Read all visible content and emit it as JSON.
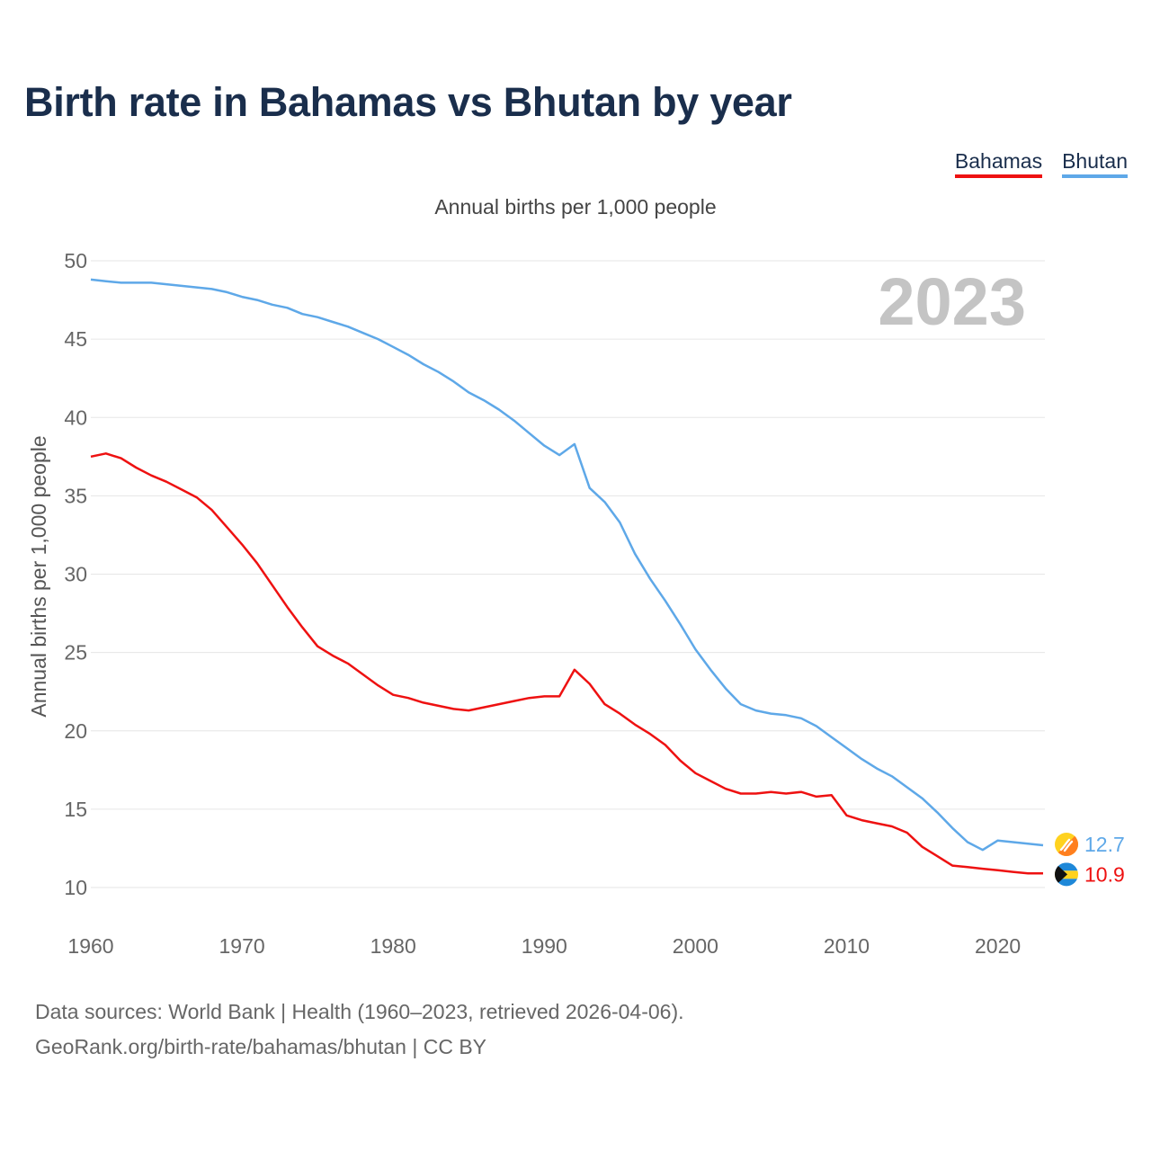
{
  "title": "Birth rate in Bahamas vs Bhutan by year",
  "legend": [
    {
      "name": "Bahamas",
      "color": "#ee1111"
    },
    {
      "name": "Bhutan",
      "color": "#5ea8e8"
    }
  ],
  "footer": {
    "line1": "Data sources: World Bank | Health (1960–2023, retrieved 2026-04-06).",
    "line2": "GeoRank.org/birth-rate/bahamas/bhutan | CC BY"
  },
  "chart_data": {
    "type": "line",
    "title": "Birth rate in Bahamas vs Bhutan by year",
    "subtitle": "Annual births per 1,000 people",
    "xlabel": "",
    "ylabel": "Annual births per 1,000 people",
    "year_label": "2023",
    "xlim": [
      1960,
      2023
    ],
    "ylim": [
      10,
      50
    ],
    "x_ticks": [
      1960,
      1970,
      1980,
      1990,
      2000,
      2010,
      2020
    ],
    "y_ticks": [
      10,
      15,
      20,
      25,
      30,
      35,
      40,
      45,
      50
    ],
    "grid": true,
    "x": [
      1960,
      1961,
      1962,
      1963,
      1964,
      1965,
      1966,
      1967,
      1968,
      1969,
      1970,
      1971,
      1972,
      1973,
      1974,
      1975,
      1976,
      1977,
      1978,
      1979,
      1980,
      1981,
      1982,
      1983,
      1984,
      1985,
      1986,
      1987,
      1988,
      1989,
      1990,
      1991,
      1992,
      1993,
      1994,
      1995,
      1996,
      1997,
      1998,
      1999,
      2000,
      2001,
      2002,
      2003,
      2004,
      2005,
      2006,
      2007,
      2008,
      2009,
      2010,
      2011,
      2012,
      2013,
      2014,
      2015,
      2016,
      2017,
      2018,
      2019,
      2020,
      2021,
      2022,
      2023
    ],
    "series": [
      {
        "name": "Bhutan",
        "color": "#5ea8e8",
        "end_label": "12.7",
        "values": [
          48.8,
          48.7,
          48.6,
          48.6,
          48.6,
          48.5,
          48.4,
          48.3,
          48.2,
          48.0,
          47.7,
          47.5,
          47.2,
          47.0,
          46.6,
          46.4,
          46.1,
          45.8,
          45.4,
          45.0,
          44.5,
          44.0,
          43.4,
          42.9,
          42.3,
          41.6,
          41.1,
          40.5,
          39.8,
          39.0,
          38.2,
          37.6,
          38.3,
          35.5,
          34.6,
          33.3,
          31.3,
          29.7,
          28.3,
          26.8,
          25.2,
          23.9,
          22.7,
          21.7,
          21.3,
          21.1,
          21.0,
          20.8,
          20.3,
          19.6,
          18.9,
          18.2,
          17.6,
          17.1,
          16.4,
          15.7,
          14.8,
          13.8,
          12.9,
          12.4,
          13.0,
          12.9,
          12.8,
          12.7
        ]
      },
      {
        "name": "Bahamas",
        "color": "#ee1111",
        "end_label": "10.9",
        "values": [
          37.5,
          37.7,
          37.4,
          36.8,
          36.3,
          35.9,
          35.4,
          34.9,
          34.1,
          33.0,
          31.9,
          30.7,
          29.3,
          27.9,
          26.6,
          25.4,
          24.8,
          24.3,
          23.6,
          22.9,
          22.3,
          22.1,
          21.8,
          21.6,
          21.4,
          21.3,
          21.5,
          21.7,
          21.9,
          22.1,
          22.2,
          22.2,
          23.9,
          23.0,
          21.7,
          21.1,
          20.4,
          19.8,
          19.1,
          18.1,
          17.3,
          16.8,
          16.3,
          16.0,
          16.0,
          16.1,
          16.0,
          16.1,
          15.8,
          15.9,
          14.6,
          14.3,
          14.1,
          13.9,
          13.5,
          12.6,
          12.0,
          11.4,
          11.3,
          11.2,
          11.1,
          11.0,
          10.9,
          10.9
        ]
      }
    ]
  }
}
